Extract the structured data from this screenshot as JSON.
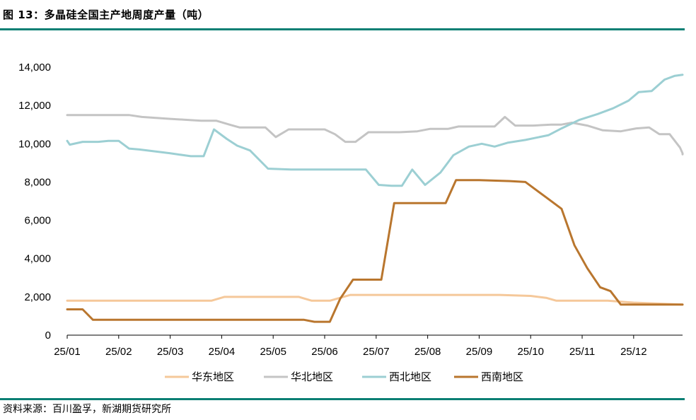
{
  "figure": {
    "title": "图 13：多晶硅全国主产地周度产量（吨）",
    "source": "资料来源：百川盈孚，新湖期货研究所"
  },
  "chart_data": {
    "type": "line",
    "title": "多晶硅全国主产地周度产量（吨）",
    "xlabel": "",
    "ylabel": "",
    "ylim": [
      0,
      14000
    ],
    "yticks": [
      0,
      2000,
      4000,
      6000,
      8000,
      10000,
      12000,
      14000
    ],
    "ytick_labels": [
      "0",
      "2,000",
      "4,000",
      "6,000",
      "8,000",
      "10,000",
      "12,000",
      "14,000"
    ],
    "x_tick_labels": [
      "25/01",
      "25/02",
      "25/03",
      "25/04",
      "25/05",
      "25/06",
      "25/07",
      "25/08",
      "25/09",
      "25/10",
      "25/11",
      "25/12"
    ],
    "xlim": [
      0,
      11.95
    ],
    "grid": false,
    "legend_position": "bottom",
    "series": [
      {
        "name": "华东地区",
        "color": "#f5c89a",
        "points": [
          [
            0,
            1800
          ],
          [
            1,
            1800
          ],
          [
            2,
            1800
          ],
          [
            2.8,
            1800
          ],
          [
            3.05,
            2000
          ],
          [
            4,
            2000
          ],
          [
            4.5,
            2000
          ],
          [
            4.75,
            1800
          ],
          [
            5.1,
            1800
          ],
          [
            5.5,
            2100
          ],
          [
            6,
            2100
          ],
          [
            7,
            2100
          ],
          [
            8,
            2100
          ],
          [
            8.4,
            2100
          ],
          [
            9,
            2050
          ],
          [
            9.3,
            1950
          ],
          [
            9.5,
            1800
          ],
          [
            10,
            1800
          ],
          [
            10.5,
            1800
          ],
          [
            11,
            1700
          ],
          [
            11.95,
            1600
          ]
        ]
      },
      {
        "name": "华北地区",
        "color": "#c4c4c4",
        "points": [
          [
            0,
            11500
          ],
          [
            0.5,
            11500
          ],
          [
            1,
            11500
          ],
          [
            1.2,
            11500
          ],
          [
            1.45,
            11400
          ],
          [
            2,
            11300
          ],
          [
            2.6,
            11200
          ],
          [
            2.9,
            11200
          ],
          [
            3.15,
            11000
          ],
          [
            3.35,
            10850
          ],
          [
            3.85,
            10850
          ],
          [
            4.05,
            10350
          ],
          [
            4.3,
            10750
          ],
          [
            4.65,
            10750
          ],
          [
            5,
            10750
          ],
          [
            5.2,
            10500
          ],
          [
            5.4,
            10100
          ],
          [
            5.6,
            10100
          ],
          [
            5.85,
            10600
          ],
          [
            6.45,
            10600
          ],
          [
            6.8,
            10650
          ],
          [
            7.05,
            10780
          ],
          [
            7.4,
            10780
          ],
          [
            7.6,
            10900
          ],
          [
            8,
            10900
          ],
          [
            8.3,
            10900
          ],
          [
            8.5,
            11400
          ],
          [
            8.7,
            10950
          ],
          [
            9.05,
            10950
          ],
          [
            9.4,
            11000
          ],
          [
            9.6,
            11000
          ],
          [
            9.8,
            11100
          ],
          [
            10.1,
            10950
          ],
          [
            10.4,
            10700
          ],
          [
            10.75,
            10650
          ],
          [
            11.05,
            10800
          ],
          [
            11.3,
            10850
          ],
          [
            11.5,
            10500
          ],
          [
            11.7,
            10500
          ],
          [
            11.9,
            9800
          ],
          [
            12.1,
            9500
          ],
          [
            12.3,
            9450
          ]
        ]
      },
      {
        "name": "西北地区",
        "color": "#9ccfd3",
        "points": [
          [
            0,
            10150
          ],
          [
            0.05,
            9950
          ],
          [
            0.3,
            10100
          ],
          [
            0.6,
            10100
          ],
          [
            0.8,
            10150
          ],
          [
            1,
            10150
          ],
          [
            1.2,
            9750
          ],
          [
            1.4,
            9700
          ],
          [
            2,
            9500
          ],
          [
            2.4,
            9350
          ],
          [
            2.65,
            9350
          ],
          [
            2.85,
            10750
          ],
          [
            3.1,
            10250
          ],
          [
            3.3,
            9900
          ],
          [
            3.55,
            9650
          ],
          [
            3.9,
            8700
          ],
          [
            4.35,
            8650
          ],
          [
            5,
            8650
          ],
          [
            5.5,
            8650
          ],
          [
            5.8,
            8650
          ],
          [
            6.05,
            7850
          ],
          [
            6.3,
            7800
          ],
          [
            6.5,
            7800
          ],
          [
            6.7,
            8650
          ],
          [
            6.95,
            7850
          ],
          [
            7.25,
            8500
          ],
          [
            7.5,
            9400
          ],
          [
            7.8,
            9850
          ],
          [
            8.05,
            10000
          ],
          [
            8.3,
            9850
          ],
          [
            8.55,
            10050
          ],
          [
            8.9,
            10200
          ],
          [
            9.35,
            10450
          ],
          [
            9.6,
            10800
          ],
          [
            9.95,
            11250
          ],
          [
            10.3,
            11550
          ],
          [
            10.6,
            11850
          ],
          [
            10.9,
            12250
          ],
          [
            11.1,
            12700
          ],
          [
            11.35,
            12750
          ],
          [
            11.6,
            13350
          ],
          [
            11.8,
            13550
          ],
          [
            11.95,
            13600
          ]
        ]
      },
      {
        "name": "西南地区",
        "color": "#b9762e",
        "points": [
          [
            0,
            1350
          ],
          [
            0.3,
            1350
          ],
          [
            0.5,
            800
          ],
          [
            1,
            800
          ],
          [
            2,
            800
          ],
          [
            3,
            800
          ],
          [
            4,
            800
          ],
          [
            4.6,
            800
          ],
          [
            4.8,
            700
          ],
          [
            5.1,
            700
          ],
          [
            5.3,
            1900
          ],
          [
            5.55,
            2900
          ],
          [
            6.1,
            2900
          ],
          [
            6.35,
            6900
          ],
          [
            6.85,
            6900
          ],
          [
            7.35,
            6900
          ],
          [
            7.55,
            8100
          ],
          [
            8,
            8100
          ],
          [
            8.6,
            8050
          ],
          [
            8.9,
            8000
          ],
          [
            9.3,
            7200
          ],
          [
            9.6,
            6600
          ],
          [
            9.85,
            4700
          ],
          [
            10.1,
            3500
          ],
          [
            10.35,
            2500
          ],
          [
            10.55,
            2300
          ],
          [
            10.75,
            1600
          ],
          [
            11.2,
            1600
          ],
          [
            11.95,
            1600
          ]
        ]
      }
    ]
  }
}
